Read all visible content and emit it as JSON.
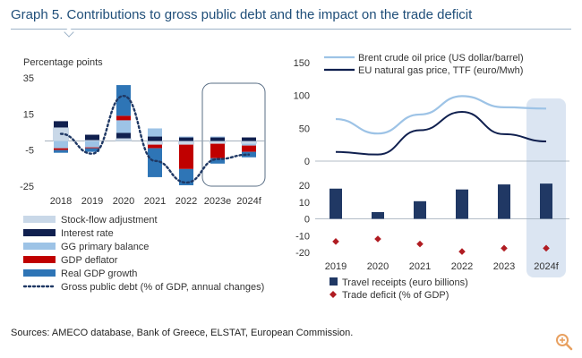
{
  "title": "Graph 5. Contributions to gross public debt and the impact on the trade deficit",
  "footer": "Sources: AMECO database, Bank of Greece, ELSTAT, European Commission.",
  "colors": {
    "stock_flow": "#c9d8e8",
    "interest": "#10204f",
    "primary_balance": "#9dc3e6",
    "deflator": "#c00000",
    "gdp_growth": "#2e75b6",
    "debt_line": "#1f3864",
    "highlight": "#dbe5f2",
    "brent": "#9dc3e6",
    "ttf": "#10204f",
    "receipts": "#203864",
    "deficit": "#b01c22"
  },
  "chart_data": [
    {
      "type": "bar",
      "stacked": true,
      "ylabel": "Percentage points",
      "ylim": [
        -25,
        35
      ],
      "yticks": [
        35,
        15,
        -5,
        -25
      ],
      "categories": [
        "2018",
        "2019",
        "2020",
        "2021",
        "2022",
        "2023e",
        "2024f"
      ],
      "highlight_categories": [
        "2023e",
        "2024f"
      ],
      "series": [
        {
          "name": "Stock-flow adjustment",
          "key": "stock_flow",
          "values": [
            7.5,
            0.5,
            1.5,
            -2.0,
            -2.0,
            -1.5,
            -1.5
          ]
        },
        {
          "name": "Interest rate",
          "key": "interest",
          "values": [
            3.5,
            3.0,
            3.0,
            2.5,
            2.0,
            2.0,
            2.0
          ]
        },
        {
          "name": "GG primary balance",
          "key": "primary_balance",
          "values": [
            -4.0,
            -3.5,
            7.0,
            4.5,
            0.5,
            0.5,
            -1.0
          ]
        },
        {
          "name": "GDP deflator",
          "key": "deflator",
          "values": [
            -1.0,
            -0.5,
            2.5,
            -2.0,
            -13.5,
            -8.0,
            -3.5
          ]
        },
        {
          "name": "Real GDP growth",
          "key": "gdp_growth",
          "values": [
            -1.5,
            -2.0,
            17.0,
            -16.0,
            -9.0,
            -3.0,
            -3.0
          ]
        }
      ],
      "line": {
        "name": "Gross public debt  (% of GDP, annual changes)",
        "values": [
          4.0,
          -7.0,
          25.0,
          -11.0,
          -23.0,
          -10.0,
          -7.5
        ]
      }
    },
    {
      "type": "line",
      "ylim": [
        0,
        150
      ],
      "yticks": [
        150,
        100,
        50,
        0
      ],
      "x": [
        "2019",
        "2020",
        "2021",
        "2022",
        "2023",
        "2024f"
      ],
      "series": [
        {
          "name": "Brent crude oil price (US dollar/barrel)",
          "key": "brent",
          "values": [
            64,
            42,
            71,
            99,
            82,
            80
          ]
        },
        {
          "name": "EU natural gas price, TTF (euro/Mwh)",
          "key": "ttf",
          "values": [
            14,
            10,
            47,
            75,
            41,
            30
          ]
        }
      ]
    },
    {
      "type": "bar",
      "ylim": [
        -20,
        20
      ],
      "yticks": [
        20,
        10,
        0,
        -10,
        -20
      ],
      "categories": [
        "2019",
        "2020",
        "2021",
        "2022",
        "2023",
        "2024f"
      ],
      "highlight_categories": [
        "2024f"
      ],
      "bars": {
        "name": "Travel receipts (euro billions)",
        "key": "receipts",
        "values": [
          18,
          4,
          10.5,
          17.5,
          20.5,
          21
        ]
      },
      "markers": {
        "name": "Trade deficit (% of GDP)",
        "key": "deficit",
        "values": [
          -13.5,
          -12.0,
          -15.0,
          -19.5,
          -17.5,
          -17.5
        ]
      }
    }
  ]
}
